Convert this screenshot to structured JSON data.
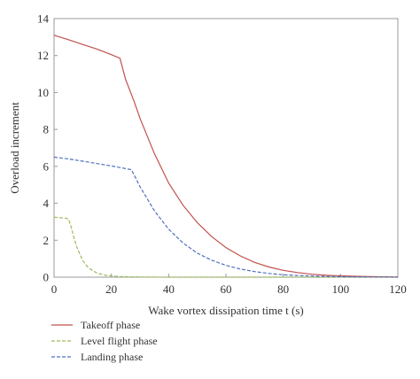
{
  "chart_data": {
    "type": "line",
    "title": "",
    "xlabel": "Wake vortex dissipation time t (s)",
    "ylabel": "Overload increment",
    "xlim": [
      0,
      120
    ],
    "ylim": [
      0,
      14
    ],
    "xticks": [
      0,
      20,
      40,
      60,
      80,
      100,
      120
    ],
    "yticks": [
      0,
      2,
      4,
      6,
      8,
      10,
      12,
      14
    ],
    "grid": false,
    "legend_position": "below plot, left",
    "series": [
      {
        "name": "Takeoff phase",
        "color": "#c0504d",
        "dash": "solid",
        "x": [
          0,
          5,
          10,
          15,
          20,
          23,
          25,
          28,
          30,
          35,
          40,
          45,
          50,
          55,
          60,
          65,
          70,
          75,
          80,
          85,
          90,
          95,
          100,
          105,
          110,
          115,
          120
        ],
        "y": [
          13.1,
          12.86,
          12.6,
          12.35,
          12.05,
          11.85,
          10.7,
          9.5,
          8.6,
          6.7,
          5.1,
          3.9,
          2.95,
          2.2,
          1.6,
          1.15,
          0.8,
          0.55,
          0.37,
          0.25,
          0.16,
          0.1,
          0.07,
          0.05,
          0.03,
          0.02,
          0.01
        ]
      },
      {
        "name": "Level flight phase",
        "color": "#9bbb59",
        "dash": "dashed",
        "x": [
          0,
          2,
          4,
          5,
          6,
          7,
          8,
          10,
          12,
          15,
          18,
          22,
          26,
          30,
          40,
          60,
          80,
          100,
          120
        ],
        "y": [
          3.25,
          3.22,
          3.2,
          3.15,
          2.7,
          2.1,
          1.6,
          0.9,
          0.5,
          0.22,
          0.1,
          0.04,
          0.02,
          0.01,
          0,
          0,
          0,
          0,
          0
        ]
      },
      {
        "name": "Landing phase",
        "color": "#4f6fc0",
        "dash": "dashed",
        "x": [
          0,
          5,
          10,
          15,
          20,
          25,
          27,
          30,
          35,
          40,
          45,
          50,
          55,
          60,
          65,
          70,
          75,
          80,
          85,
          90,
          95,
          100,
          105,
          110,
          115,
          120
        ],
        "y": [
          6.5,
          6.4,
          6.28,
          6.15,
          6.02,
          5.88,
          5.82,
          4.9,
          3.6,
          2.6,
          1.85,
          1.3,
          0.92,
          0.64,
          0.44,
          0.3,
          0.2,
          0.13,
          0.09,
          0.06,
          0.04,
          0.03,
          0.02,
          0.01,
          0.01,
          0
        ]
      }
    ]
  }
}
